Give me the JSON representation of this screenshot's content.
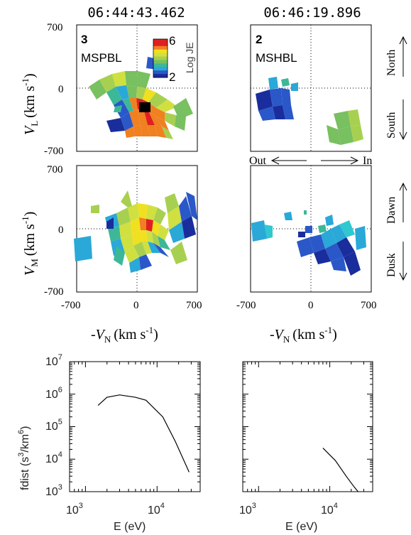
{
  "chart_data": [
    {
      "type": "heatmap",
      "panel": "VL top-left",
      "title": "06:44:43.462",
      "id_label": "3",
      "region_label": "MSPBL",
      "colorbar": {
        "max_label": "6",
        "min_label": "2",
        "label": "Log JE",
        "range": [
          2,
          6
        ]
      },
      "ylabel": "V",
      "ylabel_sub": "L",
      "ylabel_unit": "(km s",
      "ylabel_exp": "-1",
      "ylabel_close": ")",
      "y_ticks": [
        "700",
        "0",
        "-700"
      ],
      "ylim": [
        -700,
        700
      ],
      "xlim": [
        -700,
        700
      ]
    },
    {
      "type": "heatmap",
      "panel": "VL top-right",
      "title": "06:46:19.896",
      "id_label": "2",
      "region_label": "MSHBL",
      "side_labels": {
        "top": "North",
        "bottom": "South"
      },
      "x_direction": {
        "left": "Out",
        "right": "In"
      },
      "ylim": [
        -700,
        700
      ],
      "xlim": [
        -700,
        700
      ]
    },
    {
      "type": "heatmap",
      "panel": "VM middle-left",
      "ylabel": "V",
      "ylabel_sub": "M",
      "ylabel_unit": "(km s",
      "ylabel_exp": "-1",
      "ylabel_close": ")",
      "y_ticks": [
        "700",
        "0",
        "-700"
      ],
      "x_ticks": [
        "-700",
        "0",
        "700"
      ],
      "xlabel": "-V",
      "xlabel_sub": "N",
      "xlabel_unit": "(km s",
      "xlabel_exp": "-1",
      "xlabel_close": ")",
      "ylim": [
        -700,
        700
      ],
      "xlim": [
        -700,
        700
      ]
    },
    {
      "type": "heatmap",
      "panel": "VM middle-right",
      "side_labels": {
        "top": "Dawn",
        "bottom": "Dusk"
      },
      "x_ticks": [
        "-700",
        "0",
        "700"
      ],
      "xlabel": "-V",
      "xlabel_sub": "N",
      "xlabel_unit": "(km s",
      "xlabel_exp": "-1",
      "xlabel_close": ")",
      "ylim": [
        -700,
        700
      ],
      "xlim": [
        -700,
        700
      ]
    },
    {
      "type": "line",
      "panel": "fdist bottom-left",
      "xlabel": "E (eV)",
      "ylabel": "fdist (s",
      "ylabel_exp": "3",
      "ylabel_mid": "/km",
      "ylabel_exp2": "6",
      "ylabel_close": ")",
      "x_log": true,
      "y_log": true,
      "xlim": [
        600,
        40000
      ],
      "ylim": [
        1000,
        10000000
      ],
      "x_ticks": [
        {
          "base": "10",
          "exp": "3",
          "value": 1000
        },
        {
          "base": "10",
          "exp": "4",
          "value": 10000
        }
      ],
      "y_ticks": [
        {
          "base": "10",
          "exp": "7",
          "value": 10000000
        },
        {
          "base": "10",
          "exp": "6",
          "value": 1000000
        },
        {
          "base": "10",
          "exp": "5",
          "value": 100000
        },
        {
          "base": "10",
          "exp": "4",
          "value": 10000
        },
        {
          "base": "10",
          "exp": "3",
          "value": 1000
        }
      ],
      "series": [
        {
          "x": [
            1500,
            2000,
            3000,
            5000,
            7000,
            12000,
            18000,
            28000
          ],
          "y": [
            450000,
            800000,
            950000,
            800000,
            650000,
            200000,
            35000,
            4000
          ]
        }
      ]
    },
    {
      "type": "line",
      "panel": "fdist bottom-right",
      "xlabel": "E (eV)",
      "x_log": true,
      "y_log": true,
      "xlim": [
        600,
        40000
      ],
      "ylim": [
        1000,
        10000000
      ],
      "x_ticks": [
        {
          "base": "10",
          "exp": "3",
          "value": 1000
        },
        {
          "base": "10",
          "exp": "4",
          "value": 10000
        }
      ],
      "series": [
        {
          "x": [
            8000,
            12000,
            17000,
            22000,
            25000
          ],
          "y": [
            22000,
            9000,
            3000,
            1400,
            1000
          ]
        }
      ]
    }
  ],
  "colors": {
    "dark_blue": "#1a2d9c",
    "blue": "#2a58c8",
    "light_blue": "#2aa8d8",
    "cyan": "#30c8d0",
    "teal": "#3cb898",
    "green": "#78c060",
    "light_green": "#a8d050",
    "yellow_green": "#d0e040",
    "yellow": "#f0e020",
    "orange": "#f08020",
    "red": "#e02020",
    "black": "#000000"
  }
}
